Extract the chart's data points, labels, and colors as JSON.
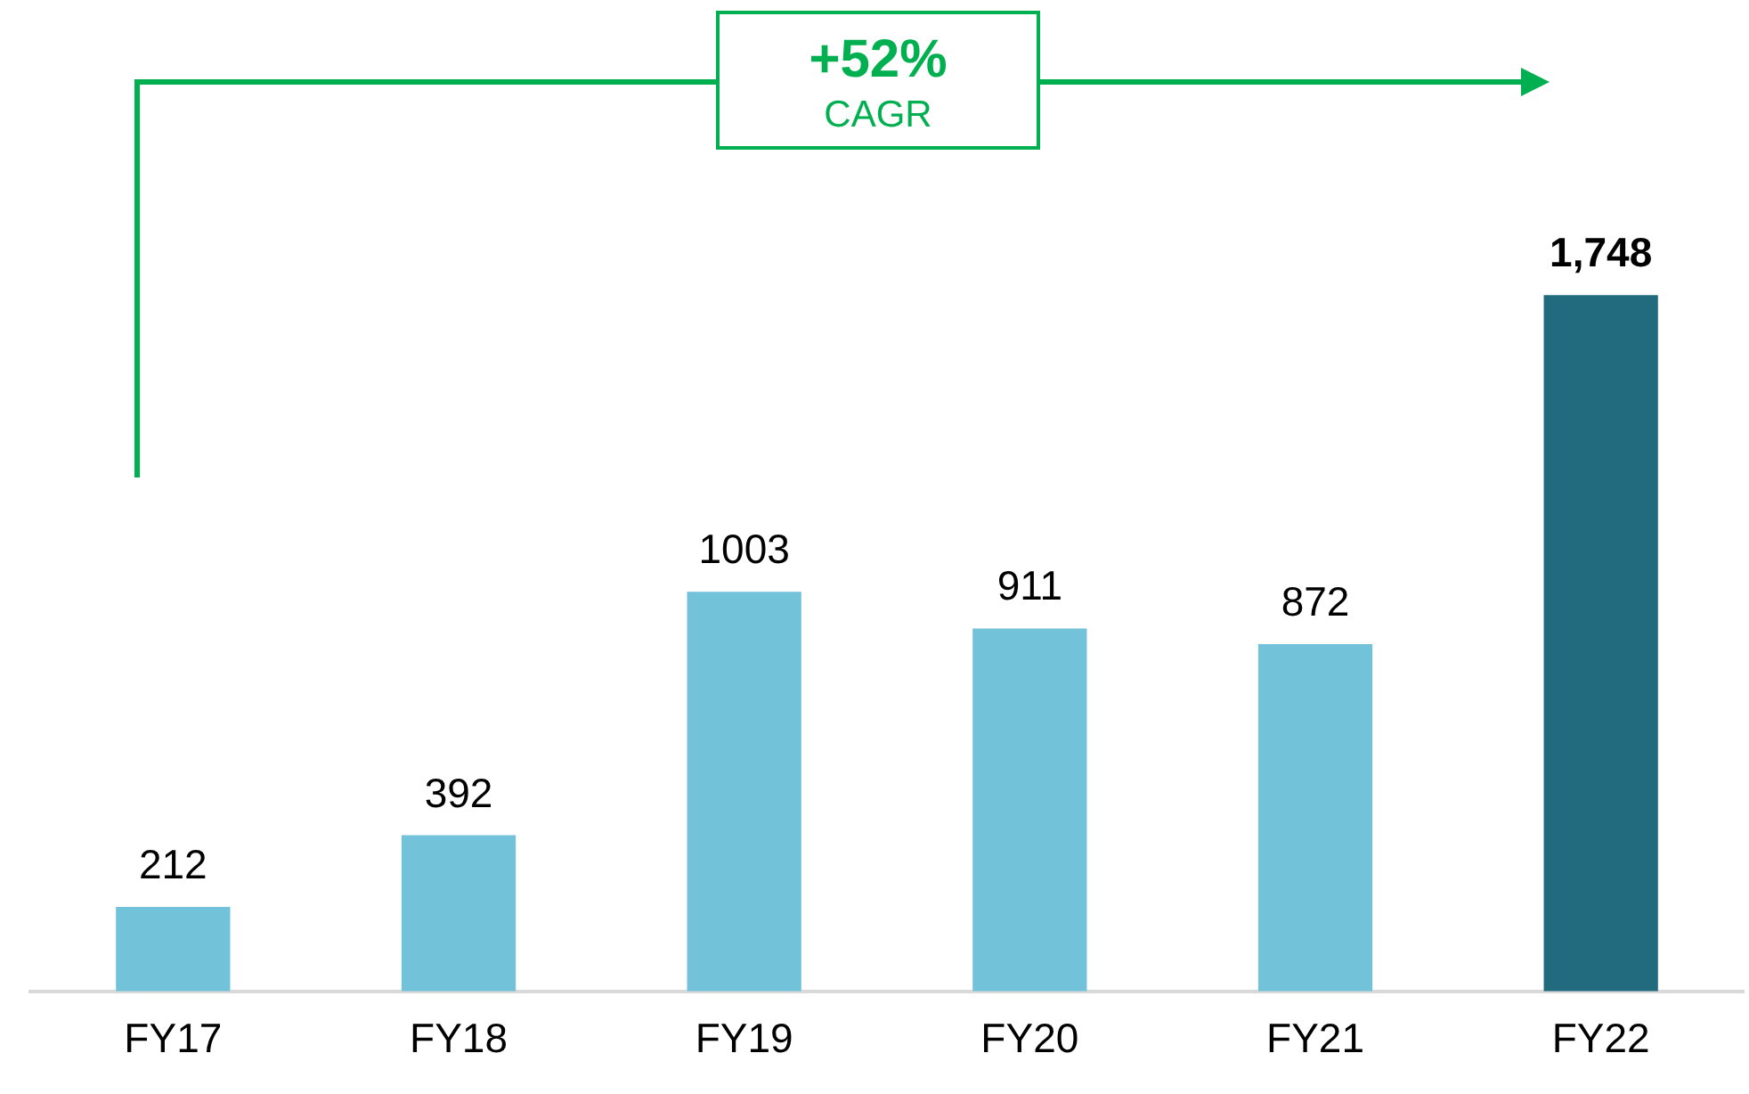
{
  "chart_data": {
    "type": "bar",
    "categories": [
      "FY17",
      "FY18",
      "FY19",
      "FY20",
      "FY21",
      "FY22"
    ],
    "values": [
      212,
      392,
      1003,
      911,
      872,
      1748
    ],
    "colors": [
      "#72c2d9",
      "#72c2d9",
      "#72c2d9",
      "#72c2d9",
      "#72c2d9",
      "#226b7e"
    ],
    "value_labels": [
      "212",
      "392",
      "1003",
      "911",
      "872",
      "1,748"
    ],
    "annotations": [
      "+52%",
      "CAGR"
    ]
  }
}
